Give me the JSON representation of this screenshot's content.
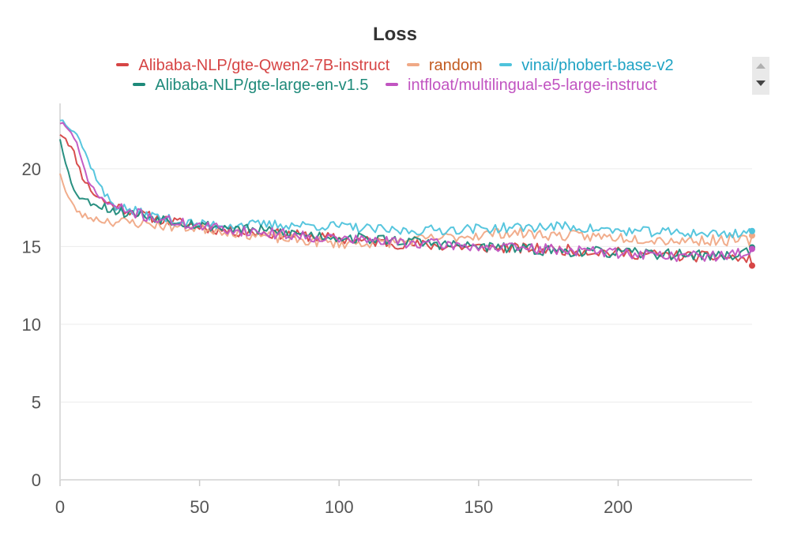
{
  "chart_data": {
    "type": "line",
    "title": "Loss",
    "xlabel": "",
    "ylabel": "",
    "xlim": [
      0,
      248
    ],
    "ylim": [
      0,
      24
    ],
    "x_ticks": [
      0,
      50,
      100,
      150,
      200
    ],
    "y_ticks": [
      0,
      5,
      10,
      15,
      20
    ],
    "grid": "horizontal",
    "legend_position": "top",
    "series": [
      {
        "name": "Alibaba-NLP/gte-Qwen2-7B-instruct",
        "color": "#d64545",
        "anchors": [
          [
            0,
            22.3
          ],
          [
            2,
            22.0
          ],
          [
            5,
            21.0
          ],
          [
            8,
            19.5
          ],
          [
            12,
            18.4
          ],
          [
            16,
            17.9
          ],
          [
            20,
            17.6
          ],
          [
            30,
            17.0
          ],
          [
            40,
            16.6
          ],
          [
            50,
            16.3
          ],
          [
            60,
            16.0
          ],
          [
            80,
            15.8
          ],
          [
            100,
            15.5
          ],
          [
            120,
            15.2
          ],
          [
            140,
            15.0
          ],
          [
            160,
            14.9
          ],
          [
            180,
            14.8
          ],
          [
            200,
            14.6
          ],
          [
            220,
            14.4
          ],
          [
            240,
            14.3
          ],
          [
            248,
            14.1
          ]
        ],
        "noise": 0.35,
        "seed": 11
      },
      {
        "name": "random",
        "color": "#f0a986",
        "anchors": [
          [
            0,
            19.8
          ],
          [
            2,
            18.5
          ],
          [
            5,
            17.5
          ],
          [
            8,
            17.0
          ],
          [
            12,
            16.8
          ],
          [
            16,
            16.7
          ],
          [
            20,
            16.6
          ],
          [
            30,
            16.5
          ],
          [
            40,
            16.3
          ],
          [
            50,
            16.2
          ],
          [
            60,
            16.0
          ],
          [
            80,
            15.5
          ],
          [
            100,
            15.2
          ],
          [
            120,
            15.3
          ],
          [
            140,
            15.6
          ],
          [
            160,
            15.9
          ],
          [
            180,
            15.7
          ],
          [
            200,
            15.6
          ],
          [
            220,
            15.4
          ],
          [
            240,
            15.4
          ],
          [
            248,
            15.4
          ]
        ],
        "noise": 0.35,
        "seed": 23
      },
      {
        "name": "vinai/phobert-base-v2",
        "color": "#4ec3dc",
        "anchors": [
          [
            0,
            23.2
          ],
          [
            3,
            22.8
          ],
          [
            6,
            22.3
          ],
          [
            9,
            21.0
          ],
          [
            12,
            19.8
          ],
          [
            16,
            18.3
          ],
          [
            20,
            17.6
          ],
          [
            30,
            17.1
          ],
          [
            40,
            16.7
          ],
          [
            50,
            16.4
          ],
          [
            60,
            16.4
          ],
          [
            80,
            16.4
          ],
          [
            100,
            16.3
          ],
          [
            120,
            16.0
          ],
          [
            140,
            16.1
          ],
          [
            160,
            16.2
          ],
          [
            180,
            16.3
          ],
          [
            200,
            16.0
          ],
          [
            220,
            15.9
          ],
          [
            240,
            15.8
          ],
          [
            248,
            16.0
          ]
        ],
        "noise": 0.32,
        "seed": 37
      },
      {
        "name": "Alibaba-NLP/gte-large-en-v1.5",
        "color": "#1e8a7a",
        "anchors": [
          [
            0,
            22.0
          ],
          [
            2,
            20.5
          ],
          [
            4,
            19.0
          ],
          [
            7,
            18.2
          ],
          [
            10,
            17.9
          ],
          [
            15,
            17.6
          ],
          [
            20,
            17.3
          ],
          [
            30,
            17.0
          ],
          [
            40,
            16.7
          ],
          [
            50,
            16.4
          ],
          [
            60,
            16.2
          ],
          [
            80,
            15.9
          ],
          [
            100,
            15.6
          ],
          [
            120,
            15.4
          ],
          [
            140,
            15.1
          ],
          [
            160,
            14.9
          ],
          [
            180,
            14.7
          ],
          [
            200,
            14.6
          ],
          [
            220,
            14.5
          ],
          [
            240,
            14.4
          ],
          [
            248,
            14.8
          ]
        ],
        "noise": 0.35,
        "seed": 53
      },
      {
        "name": "intfloat/multilingual-e5-large-instruct",
        "color": "#c154c1",
        "anchors": [
          [
            0,
            23.0
          ],
          [
            3,
            22.6
          ],
          [
            6,
            21.5
          ],
          [
            9,
            19.8
          ],
          [
            12,
            18.6
          ],
          [
            16,
            17.9
          ],
          [
            20,
            17.5
          ],
          [
            30,
            17.0
          ],
          [
            40,
            16.6
          ],
          [
            50,
            16.3
          ],
          [
            60,
            16.1
          ],
          [
            80,
            15.8
          ],
          [
            100,
            15.5
          ],
          [
            120,
            15.3
          ],
          [
            140,
            15.1
          ],
          [
            160,
            14.9
          ],
          [
            180,
            14.8
          ],
          [
            200,
            14.6
          ],
          [
            220,
            14.4
          ],
          [
            240,
            14.4
          ],
          [
            248,
            14.8
          ]
        ],
        "noise": 0.35,
        "seed": 71
      }
    ]
  }
}
